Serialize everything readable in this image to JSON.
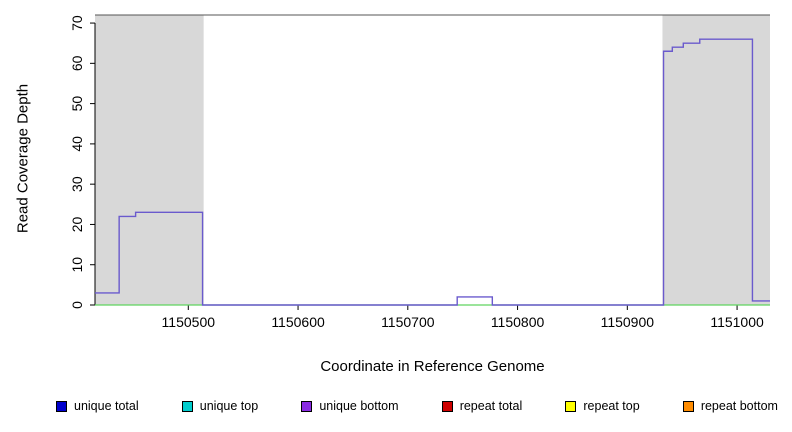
{
  "chart_data": {
    "type": "line",
    "title": "",
    "xlabel": "Coordinate in Reference Genome",
    "ylabel": "Read Coverage Depth",
    "xlim": [
      1150415,
      1151030
    ],
    "ylim": [
      0,
      72
    ],
    "x_ticks": [
      1150500,
      1150600,
      1150700,
      1150800,
      1150900,
      1151000
    ],
    "y_ticks": [
      0,
      10,
      20,
      30,
      40,
      50,
      60,
      70
    ],
    "grid": false,
    "top_border_color": "#555555",
    "shaded_regions": [
      {
        "name": "left-repeat-region",
        "x0": 1150415,
        "x1": 1150514,
        "color": "#d8d8d8"
      },
      {
        "name": "right-repeat-region",
        "x0": 1150932,
        "x1": 1151030,
        "color": "#d8d8d8"
      }
    ],
    "baseline": {
      "name": "zero-coverage-baseline",
      "y": 0,
      "color": "#5fd35f"
    },
    "series": [
      {
        "name": "unique bottom coverage",
        "color": "#6a5acd",
        "step_points": [
          [
            1150415,
            3
          ],
          [
            1150437,
            22
          ],
          [
            1150452,
            23
          ],
          [
            1150513,
            0
          ],
          [
            1150745,
            2
          ],
          [
            1150777,
            0
          ],
          [
            1150933,
            63
          ],
          [
            1150941,
            64
          ],
          [
            1150951,
            65
          ],
          [
            1150966,
            66
          ],
          [
            1151014,
            1
          ],
          [
            1151030,
            1
          ]
        ]
      }
    ],
    "legend_position": "bottom"
  },
  "legend": {
    "items": [
      {
        "label": "unique total",
        "color": "#0000cd"
      },
      {
        "label": "unique top",
        "color": "#00cdcd"
      },
      {
        "label": "unique bottom",
        "color": "#8a2be2"
      },
      {
        "label": "repeat total",
        "color": "#cd0000"
      },
      {
        "label": "repeat top",
        "color": "#ffff00"
      },
      {
        "label": "repeat bottom",
        "color": "#ff8c00"
      }
    ]
  }
}
